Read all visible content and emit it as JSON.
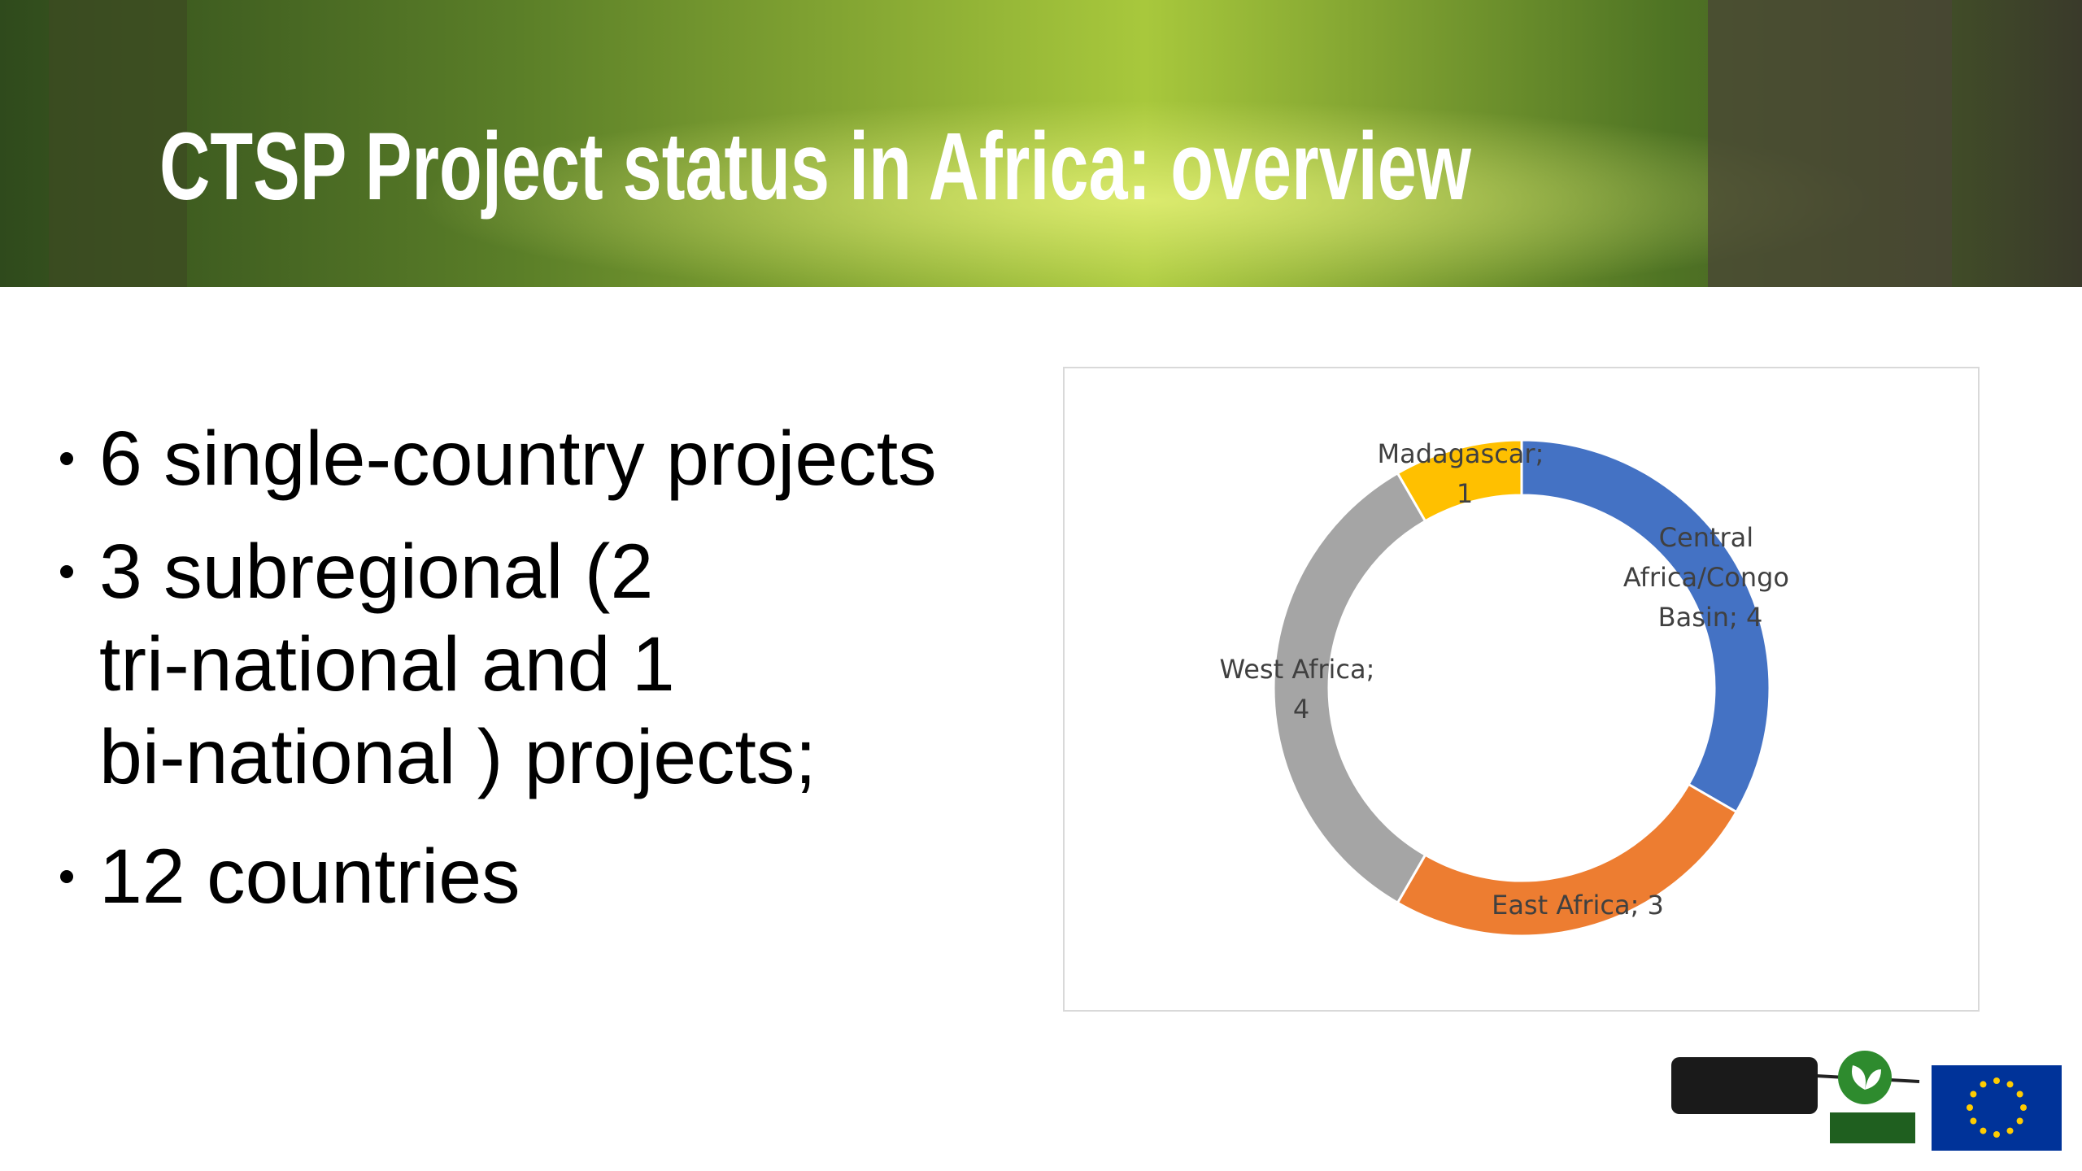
{
  "title": "CTSP Project status in Africa: overview",
  "bullets": [
    "6 single-country projects",
    "3 subregional (2 tri-national and 1 bi-national ) projects;",
    "12 countries"
  ],
  "chart_data": {
    "type": "donut",
    "values": [
      4,
      3,
      4,
      1
    ],
    "value_labels": [
      "Central Africa/Congo Basin; 4",
      "East Africa; 3",
      "West Africa; 4",
      "Madagascar; 1"
    ],
    "colors": [
      "#4472c4",
      "#ed7d31",
      "#a5a5a5",
      "#ffc000"
    ]
  }
}
